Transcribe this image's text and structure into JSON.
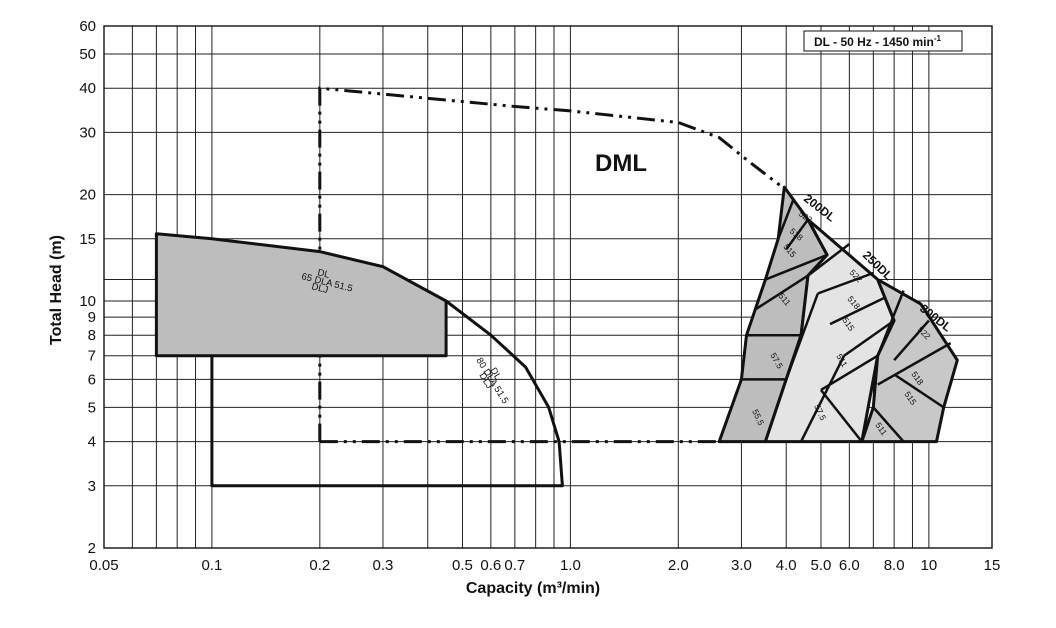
{
  "chart_data": {
    "type": "line",
    "title": "DML",
    "subtitle": "DL - 50 Hz - 1450 min",
    "subtitle_sup": "-1",
    "xlabel": "Capacity  (m³/min)",
    "ylabel": "Total Head  (m)",
    "x_scale": "log",
    "y_scale": "log",
    "xlim": [
      0.05,
      15
    ],
    "ylim": [
      2,
      60
    ],
    "x_ticks": [
      0.05,
      0.1,
      0.2,
      0.3,
      0.5,
      0.6,
      0.7,
      1.0,
      2.0,
      3.0,
      4.0,
      5.0,
      6.0,
      8.0,
      10,
      15
    ],
    "x_tick_labels": [
      "0.05",
      "0.1",
      "0.2",
      "0.3",
      "0.5",
      "0.6",
      "0.7",
      "1.0",
      "2.0",
      "3.0",
      "4.0",
      "5.0",
      "6.0",
      "8.0",
      "10",
      "15"
    ],
    "y_ticks": [
      2,
      3,
      4,
      5,
      6,
      7,
      8,
      9,
      10,
      15,
      20,
      30,
      40,
      50,
      60
    ],
    "y_tick_labels": [
      "2",
      "3",
      "4",
      "5",
      "6",
      "7",
      "8",
      "9",
      "10",
      "15",
      "20",
      "30",
      "40",
      "50",
      "60"
    ],
    "grid": true,
    "legend": "none",
    "series": [
      {
        "name": "DML",
        "style": "dash-dot-dot",
        "points": [
          [
            0.2,
            4.0
          ],
          [
            0.2,
            40.0
          ],
          [
            0.3,
            38.5
          ],
          [
            0.7,
            35.5
          ],
          [
            1.0,
            34.5
          ],
          [
            2.0,
            32.0
          ],
          [
            2.6,
            29.0
          ],
          [
            3.2,
            24.5
          ],
          [
            3.9,
            21.0
          ]
        ]
      },
      {
        "name": "DML",
        "style": "dash-dot-dot",
        "points": [
          [
            0.2,
            4.0
          ],
          [
            2.6,
            4.0
          ]
        ]
      },
      {
        "name": "65 DL / DLA / DLJ 51.5",
        "labels": [
          "DL",
          "65 DLA 51.5",
          "DLJ"
        ],
        "style": "solid-filled",
        "fill": "#bdbdbd",
        "points": [
          [
            0.07,
            15.5
          ],
          [
            0.1,
            15.0
          ],
          [
            0.2,
            13.8
          ],
          [
            0.3,
            12.5
          ],
          [
            0.45,
            10.0
          ],
          [
            0.45,
            7.0
          ],
          [
            0.07,
            7.0
          ]
        ]
      },
      {
        "name": "80 DL / DLA / DLJ 51.5",
        "labels": [
          "DL",
          "80 DLA 51.5",
          "DLJ"
        ],
        "style": "solid",
        "points": [
          [
            0.1,
            7.0
          ],
          [
            0.1,
            3.0
          ],
          [
            0.95,
            3.0
          ],
          [
            0.93,
            4.0
          ],
          [
            0.87,
            5.0
          ],
          [
            0.75,
            6.5
          ],
          [
            0.6,
            8.0
          ],
          [
            0.45,
            10.0
          ]
        ]
      },
      {
        "name": "200DL",
        "style": "solid-filled",
        "fill": "#bdbdbd",
        "zone_labels": [
          "522",
          "518",
          "515",
          "511",
          "57.5",
          "55.5"
        ],
        "points": [
          [
            3.95,
            21.0
          ],
          [
            4.6,
            17.0
          ],
          [
            5.2,
            13.5
          ],
          [
            4.6,
            11.8
          ],
          [
            4.4,
            8.0
          ],
          [
            4.0,
            6.0
          ],
          [
            3.5,
            4.0
          ],
          [
            2.6,
            4.0
          ],
          [
            3.0,
            6.0
          ],
          [
            3.1,
            8.0
          ],
          [
            3.5,
            11.5
          ],
          [
            3.8,
            15.0
          ]
        ]
      },
      {
        "name": "250DL",
        "style": "solid-filled",
        "fill": "#e4e4e4",
        "zone_labels": [
          "522",
          "518",
          "515",
          "511",
          "57.5"
        ],
        "points": [
          [
            4.6,
            17.0
          ],
          [
            7.2,
            11.5
          ],
          [
            8.0,
            8.8
          ],
          [
            7.2,
            7.0
          ],
          [
            6.5,
            4.0
          ],
          [
            3.5,
            4.0
          ],
          [
            4.0,
            6.0
          ],
          [
            4.4,
            8.0
          ],
          [
            4.6,
            11.8
          ],
          [
            5.2,
            13.5
          ]
        ]
      },
      {
        "name": "300DL",
        "style": "solid-filled",
        "fill": "#c8c8c8",
        "zone_labels": [
          "522",
          "518",
          "515",
          "511"
        ],
        "points": [
          [
            7.2,
            11.5
          ],
          [
            9.5,
            9.8
          ],
          [
            12.0,
            6.8
          ],
          [
            11.0,
            5.0
          ],
          [
            10.5,
            4.0
          ],
          [
            6.5,
            4.0
          ],
          [
            7.0,
            5.0
          ],
          [
            7.2,
            7.0
          ],
          [
            8.0,
            8.8
          ]
        ]
      }
    ]
  }
}
